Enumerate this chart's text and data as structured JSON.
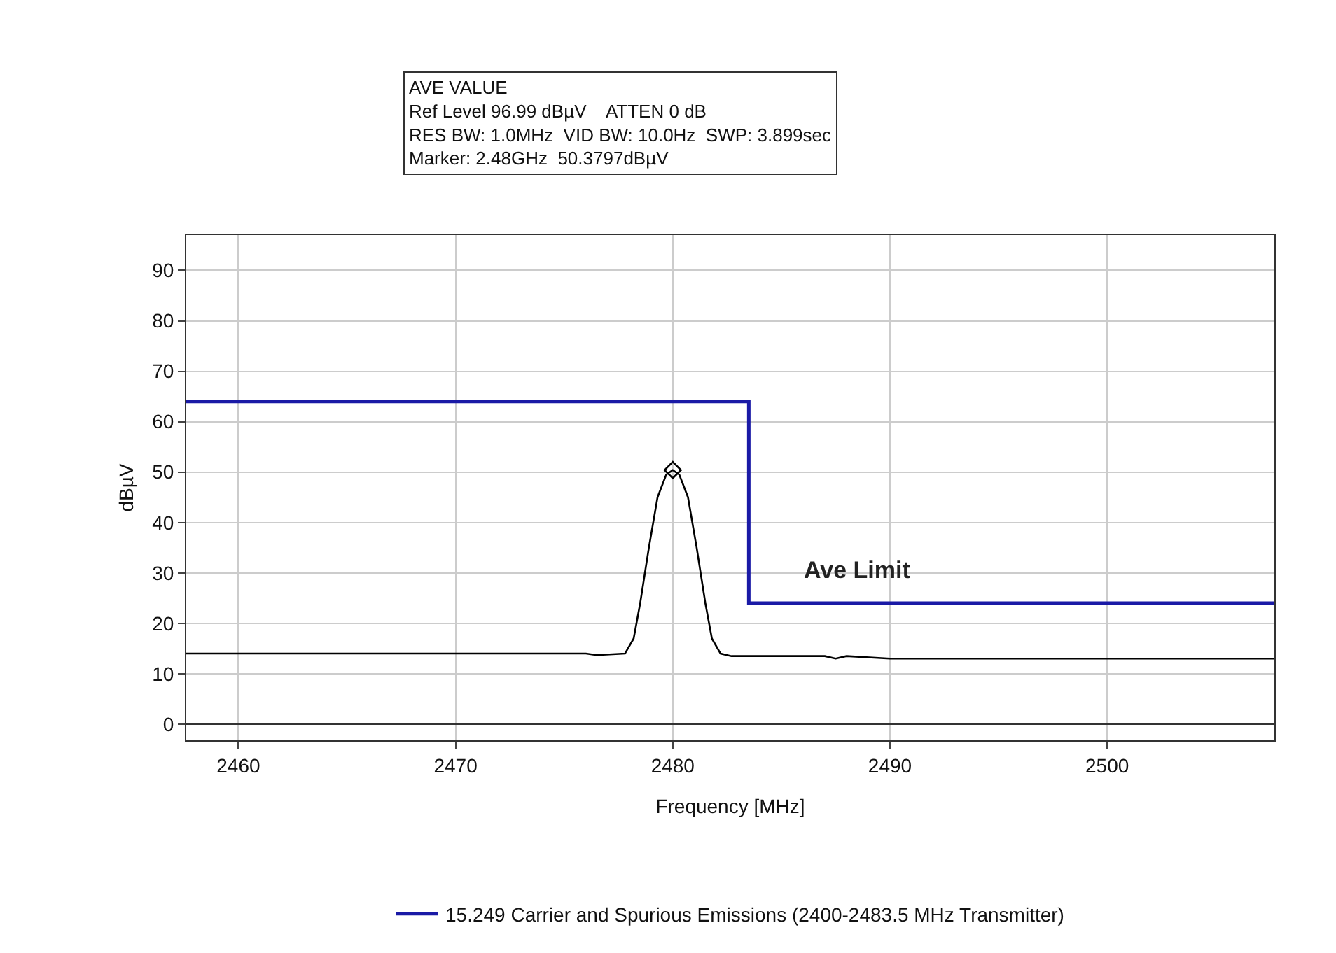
{
  "chart_data": {
    "type": "line",
    "xlabel": "Frequency [MHz]",
    "ylabel": "dBµV",
    "xlim": [
      2457.6,
      2507.7
    ],
    "xticks": [
      2460,
      2470,
      2480,
      2490,
      2500
    ],
    "ylim": [
      -3.2,
      97
    ],
    "yticks": [
      0,
      10,
      20,
      30,
      40,
      50,
      60,
      70,
      80,
      90
    ],
    "grid": true,
    "legend": "bottom",
    "marker": "none",
    "line_style": "solid",
    "series": [
      {
        "name": "15.249 Carrier and Spurious Emissions (2400-2483.5 MHz Transmitter)",
        "type": "step",
        "color": "#1a1aa6",
        "x": [
          2457.6,
          2483.5,
          2507.7
        ],
        "values": [
          64,
          24,
          24
        ]
      },
      {
        "color": "#000000",
        "x": [
          2457.6,
          2476,
          2476.5,
          2477.8,
          2478.2,
          2478.5,
          2478.9,
          2479.3,
          2479.7,
          2480,
          2480.3,
          2480.7,
          2481.1,
          2481.5,
          2481.8,
          2482.2,
          2482.7,
          2487,
          2487.5,
          2488,
          2490,
          2507.7
        ],
        "values": [
          14,
          14,
          13.7,
          14,
          17,
          24,
          35,
          45,
          49.5,
          50.4,
          49.5,
          45,
          35,
          24,
          17,
          14,
          13.5,
          13.5,
          13,
          13.5,
          13,
          13
        ]
      },
      {
        "type": "scatter",
        "marker": "diamond",
        "color": "#000000",
        "x": [
          2480
        ],
        "values": [
          50.4
        ]
      }
    ],
    "annotations": [
      "AVE VALUE",
      "Ref Level 96.99 dBµV    ATTEN 0 dB",
      "RES BW: 1.0MHz  VID BW: 10.0Hz  SWP: 3.899sec",
      "Marker: 2.48GHz  50.3797dBµV",
      "Ave Limit"
    ]
  }
}
